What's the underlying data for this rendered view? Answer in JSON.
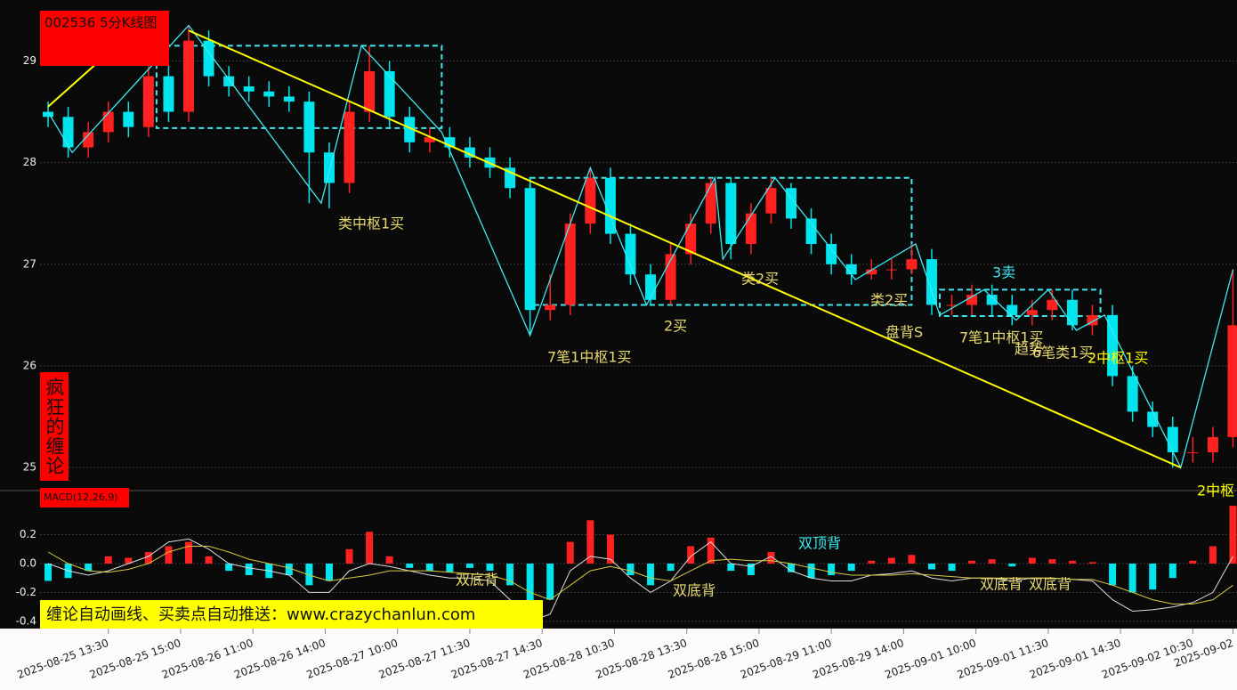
{
  "chart_data": [
    {
      "type": "candlestick",
      "title": "002536 5分K线图",
      "side_label": "疯狂的缠论",
      "up_color": "#ff2020",
      "down_color": "#00e5ee",
      "xlim": [
        -2,
        296
      ],
      "ylim": [
        24.8,
        29.6
      ],
      "yticks": [
        25,
        26,
        27,
        28,
        29
      ],
      "grid": true,
      "xticks": [
        {
          "value": 15,
          "label": "2025-08-25 13:30"
        },
        {
          "value": 33,
          "label": "2025-08-25 15:00"
        },
        {
          "value": 51,
          "label": "2025-08-26 11:00"
        },
        {
          "value": 69,
          "label": "2025-08-26 14:00"
        },
        {
          "value": 87,
          "label": "2025-08-27 10:00"
        },
        {
          "value": 105,
          "label": "2025-08-27 11:30"
        },
        {
          "value": 123,
          "label": "2025-08-27 14:30"
        },
        {
          "value": 141,
          "label": "2025-08-28 10:30"
        },
        {
          "value": 159,
          "label": "2025-08-28 13:30"
        },
        {
          "value": 177,
          "label": "2025-08-28 15:00"
        },
        {
          "value": 195,
          "label": "2025-08-29 11:00"
        },
        {
          "value": 213,
          "label": "2025-08-29 14:00"
        },
        {
          "value": 231,
          "label": "2025-09-01 10:00"
        },
        {
          "value": 249,
          "label": "2025-09-01 11:30"
        },
        {
          "value": 267,
          "label": "2025-09-01 14:30"
        },
        {
          "value": 285,
          "label": "2025-09-02 10:30"
        },
        {
          "value": 295,
          "label": "2025-09-02"
        }
      ],
      "x": [
        0,
        5,
        10,
        15,
        20,
        25,
        30,
        35,
        40,
        45,
        50,
        55,
        60,
        65,
        70,
        75,
        80,
        85,
        90,
        95,
        100,
        105,
        110,
        115,
        120,
        125,
        130,
        135,
        140,
        145,
        150,
        155,
        160,
        165,
        170,
        175,
        180,
        185,
        190,
        195,
        200,
        205,
        210,
        215,
        220,
        225,
        230,
        235,
        240,
        245,
        250,
        255,
        260,
        265,
        270,
        275,
        280,
        285,
        290,
        295
      ],
      "open": [
        28.5,
        28.45,
        28.15,
        28.3,
        28.5,
        28.35,
        28.85,
        28.5,
        29.2,
        28.85,
        28.75,
        28.7,
        28.65,
        28.6,
        28.1,
        27.8,
        28.5,
        28.9,
        28.45,
        28.2,
        28.25,
        28.15,
        28.05,
        27.95,
        27.75,
        26.55,
        26.6,
        27.4,
        27.85,
        27.3,
        26.9,
        26.65,
        27.1,
        27.4,
        27.8,
        27.2,
        27.5,
        27.75,
        27.45,
        27.2,
        27.0,
        26.9,
        26.95,
        26.95,
        27.05,
        26.6,
        26.6,
        26.7,
        26.6,
        26.5,
        26.55,
        26.65,
        26.4,
        26.5,
        25.9,
        25.55,
        25.4,
        25.15,
        25.15,
        25.3
      ],
      "high": [
        28.6,
        28.55,
        28.4,
        28.6,
        28.6,
        28.95,
        28.95,
        29.35,
        29.3,
        28.95,
        28.85,
        28.8,
        28.75,
        28.7,
        28.2,
        28.6,
        29.15,
        29.0,
        28.55,
        28.35,
        28.35,
        28.25,
        28.15,
        28.05,
        27.85,
        26.9,
        27.5,
        27.95,
        27.95,
        27.4,
        27.0,
        27.2,
        27.5,
        27.85,
        27.85,
        27.6,
        27.85,
        27.8,
        27.55,
        27.3,
        27.1,
        27.05,
        27.05,
        27.2,
        27.15,
        26.7,
        26.8,
        26.8,
        26.7,
        26.65,
        26.75,
        26.75,
        26.6,
        26.6,
        26.0,
        25.65,
        25.5,
        25.3,
        25.4,
        26.95
      ],
      "low": [
        28.35,
        28.05,
        28.05,
        28.2,
        28.25,
        28.25,
        28.4,
        28.4,
        28.75,
        28.65,
        28.6,
        28.55,
        28.5,
        27.6,
        27.55,
        27.7,
        28.4,
        28.35,
        28.1,
        28.1,
        28.05,
        27.95,
        27.85,
        27.65,
        26.3,
        26.45,
        26.5,
        27.3,
        27.2,
        26.8,
        26.6,
        26.6,
        27.0,
        27.3,
        27.05,
        27.1,
        27.4,
        27.35,
        27.1,
        26.9,
        26.8,
        26.85,
        26.85,
        26.9,
        26.5,
        26.5,
        26.5,
        26.5,
        26.4,
        26.4,
        26.45,
        26.35,
        26.3,
        25.8,
        25.45,
        25.3,
        25.0,
        25.05,
        25.05,
        25.2
      ],
      "close": [
        28.45,
        28.15,
        28.3,
        28.5,
        28.35,
        28.85,
        28.5,
        29.2,
        28.85,
        28.75,
        28.7,
        28.65,
        28.6,
        28.1,
        27.8,
        28.5,
        28.9,
        28.45,
        28.2,
        28.25,
        28.15,
        28.05,
        27.95,
        27.75,
        26.55,
        26.6,
        27.4,
        27.85,
        27.3,
        26.9,
        26.65,
        27.1,
        27.4,
        27.8,
        27.2,
        27.5,
        27.75,
        27.45,
        27.2,
        27.0,
        26.9,
        26.95,
        26.95,
        27.05,
        26.6,
        26.6,
        26.7,
        26.6,
        26.5,
        26.55,
        26.65,
        26.4,
        26.5,
        25.9,
        25.55,
        25.4,
        25.15,
        25.15,
        25.3,
        26.4
      ],
      "overlays": [
        {
          "color": "#3ee8f0",
          "x": [
            0,
            6,
            35,
            68,
            78,
            98,
            120,
            135,
            149,
            166,
            168,
            181,
            201,
            216,
            222,
            233,
            241,
            249,
            256,
            263,
            282,
            295
          ],
          "values": [
            28.5,
            28.1,
            29.35,
            27.6,
            29.15,
            28.3,
            26.3,
            27.95,
            26.6,
            27.85,
            27.05,
            27.85,
            26.85,
            27.2,
            26.5,
            26.75,
            26.45,
            26.75,
            26.35,
            26.5,
            25.0,
            26.95
          ]
        },
        {
          "color": "#ffff00",
          "x": [
            0,
            17,
            null,
            35,
            282
          ],
          "values": [
            28.55,
            29.15,
            null,
            29.3,
            25.0
          ]
        }
      ],
      "zones": [
        {
          "x": [
            27,
            98
          ],
          "values": [
            28.34,
            29.15
          ]
        },
        {
          "x": [
            120,
            215
          ],
          "values": [
            26.6,
            27.85
          ]
        },
        {
          "x": [
            222,
            262
          ],
          "values": [
            26.49,
            26.75
          ]
        }
      ],
      "annotations": [
        {
          "text": "类中枢1买",
          "color": "#e8d870"
        },
        {
          "text": "7笔1中枢1买",
          "color": "#e8d870"
        },
        {
          "text": "2买",
          "color": "#e8d870"
        },
        {
          "text": "类2买",
          "color": "#e8d870"
        },
        {
          "text": "类2买",
          "color": "#e8d870"
        },
        {
          "text": "盘背S",
          "color": "#e8d870"
        },
        {
          "text": "3卖",
          "color": "#3ee8f0"
        },
        {
          "text": "7笔1中枢1买",
          "color": "#e8d870"
        },
        {
          "text": "趋势",
          "color": "#e8d870"
        },
        {
          "text": "6笔类1买",
          "color": "#e8d870"
        },
        {
          "text": "2中枢1买",
          "color": "#ffff00"
        },
        {
          "text": "2中枢",
          "color": "#ffff00"
        }
      ]
    },
    {
      "type": "macd",
      "title": "MACD(12,26,9)",
      "banner": "缠论自动画线、买卖点自动推送：www.crazychanlun.com",
      "up_color": "#ff2020",
      "down_color": "#00e5ee",
      "xlim": [
        -2,
        296
      ],
      "ylim": [
        -0.45,
        0.45
      ],
      "yticks": [
        0.2,
        {
          "value": 0,
          "label": "0.0"
        },
        -0.2,
        -0.4
      ],
      "grid": true,
      "x": [
        0,
        5,
        10,
        15,
        20,
        25,
        30,
        35,
        40,
        45,
        50,
        55,
        60,
        65,
        70,
        75,
        80,
        85,
        90,
        95,
        100,
        105,
        110,
        115,
        120,
        125,
        130,
        135,
        140,
        145,
        150,
        155,
        160,
        165,
        170,
        175,
        180,
        185,
        190,
        195,
        200,
        205,
        210,
        215,
        220,
        225,
        230,
        235,
        240,
        245,
        250,
        255,
        260,
        265,
        270,
        275,
        280,
        285,
        290,
        295
      ],
      "values": [
        -0.12,
        -0.1,
        -0.05,
        0.05,
        0.04,
        0.08,
        0.12,
        0.15,
        0.05,
        -0.05,
        -0.08,
        -0.1,
        -0.08,
        -0.15,
        -0.12,
        0.1,
        0.22,
        0.05,
        -0.03,
        -0.05,
        -0.06,
        -0.03,
        -0.05,
        -0.15,
        -0.3,
        -0.25,
        0.15,
        0.3,
        0.2,
        -0.08,
        -0.15,
        -0.05,
        0.12,
        0.18,
        -0.05,
        -0.08,
        0.08,
        -0.06,
        -0.1,
        -0.08,
        -0.05,
        0.02,
        0.04,
        0.06,
        -0.04,
        -0.05,
        0.02,
        0.03,
        -0.02,
        0.04,
        0.03,
        0.02,
        0.01,
        -0.15,
        -0.2,
        -0.18,
        -0.1,
        0.02,
        0.12,
        0.4
      ],
      "series": [
        {
          "color": "#dddddd",
          "values": [
            0.0,
            -0.05,
            -0.08,
            -0.05,
            0.0,
            0.05,
            0.15,
            0.17,
            0.1,
            0.0,
            -0.03,
            -0.05,
            -0.08,
            -0.2,
            -0.2,
            -0.05,
            0.0,
            -0.02,
            -0.05,
            -0.08,
            -0.1,
            -0.1,
            -0.12,
            -0.25,
            -0.4,
            -0.35,
            -0.05,
            0.05,
            0.03,
            -0.1,
            -0.2,
            -0.12,
            0.05,
            0.15,
            0.0,
            -0.02,
            0.05,
            -0.05,
            -0.1,
            -0.12,
            -0.12,
            -0.08,
            -0.07,
            -0.05,
            -0.1,
            -0.12,
            -0.1,
            -0.1,
            -0.12,
            -0.1,
            -0.1,
            -0.11,
            -0.12,
            -0.25,
            -0.33,
            -0.32,
            -0.3,
            -0.27,
            -0.2,
            0.05
          ]
        },
        {
          "color": "#d8c840",
          "values": [
            0.08,
            0.0,
            -0.05,
            -0.06,
            -0.04,
            0.0,
            0.08,
            0.12,
            0.12,
            0.08,
            0.03,
            0.0,
            -0.03,
            -0.08,
            -0.12,
            -0.1,
            -0.08,
            -0.05,
            -0.05,
            -0.05,
            -0.06,
            -0.07,
            -0.08,
            -0.12,
            -0.2,
            -0.25,
            -0.15,
            -0.05,
            -0.02,
            -0.05,
            -0.1,
            -0.12,
            -0.05,
            0.02,
            0.03,
            0.02,
            0.02,
            0.0,
            -0.03,
            -0.06,
            -0.08,
            -0.08,
            -0.08,
            -0.07,
            -0.08,
            -0.09,
            -0.1,
            -0.1,
            -0.1,
            -0.1,
            -0.1,
            -0.11,
            -0.11,
            -0.15,
            -0.2,
            -0.25,
            -0.28,
            -0.28,
            -0.25,
            -0.15
          ]
        }
      ],
      "annotations": [
        {
          "text": "双底背",
          "color": "#e8d870"
        },
        {
          "text": "双底背",
          "color": "#e8d870"
        },
        {
          "text": "双顶背",
          "color": "#3ee8f0"
        },
        {
          "text": "双底背",
          "color": "#e8d870"
        },
        {
          "text": "双底背",
          "color": "#e8d870"
        }
      ]
    }
  ]
}
